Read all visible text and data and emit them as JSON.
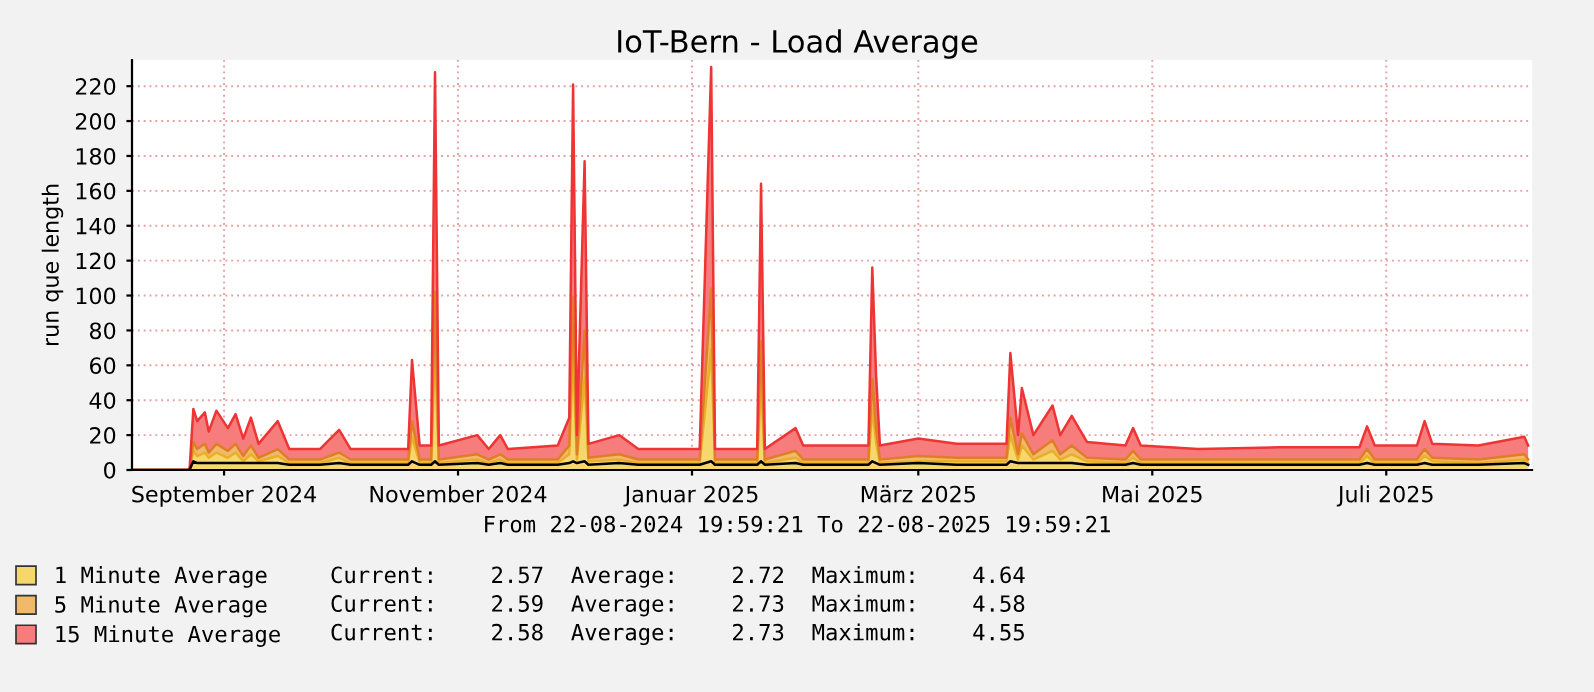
{
  "chart_data": {
    "type": "area",
    "title": "IoT-Bern - Load Average",
    "ylabel": "run que length",
    "stacked": true,
    "x": [
      "2024-08-22",
      "2024-09-06",
      "2024-09-07",
      "2024-09-08",
      "2024-09-10",
      "2024-09-11",
      "2024-09-13",
      "2024-09-16",
      "2024-09-18",
      "2024-09-20",
      "2024-09-22",
      "2024-09-24",
      "2024-09-29",
      "2024-10-02",
      "2024-10-10",
      "2024-10-15",
      "2024-10-18",
      "2024-10-30",
      "2024-11-02",
      "2024-11-03",
      "2024-11-05",
      "2024-11-08",
      "2024-11-09",
      "2024-11-10",
      "2024-11-20",
      "2024-11-23",
      "2024-11-26",
      "2024-11-28",
      "2024-12-11",
      "2024-12-14",
      "2024-12-15",
      "2024-12-16",
      "2024-12-18",
      "2024-12-19",
      "2024-12-27",
      "2025-01-01",
      "2025-01-17",
      "2025-01-20",
      "2025-01-21",
      "2025-02-01",
      "2025-02-02",
      "2025-02-03",
      "2025-02-11",
      "2025-02-13",
      "2025-02-22",
      "2025-03-02",
      "2025-03-03",
      "2025-03-04",
      "2025-03-05",
      "2025-03-15",
      "2025-03-25",
      "2025-04-07",
      "2025-04-08",
      "2025-04-10",
      "2025-04-11",
      "2025-04-14",
      "2025-04-19",
      "2025-04-21",
      "2025-04-24",
      "2025-04-28",
      "2025-05-08",
      "2025-05-10",
      "2025-05-12",
      "2025-05-27",
      "2025-06-17",
      "2025-07-08",
      "2025-07-10",
      "2025-07-12",
      "2025-07-23",
      "2025-07-25",
      "2025-07-27",
      "2025-08-08",
      "2025-08-20",
      "2025-08-21"
    ],
    "series": [
      {
        "name": "1 Minute Average",
        "color": "#f5d76e",
        "values": [
          0,
          0,
          11,
          8,
          10,
          7,
          10,
          7,
          10,
          5,
          9,
          5,
          8,
          4,
          4,
          7,
          4,
          4,
          4,
          19,
          4,
          4,
          68,
          4,
          6,
          4,
          6,
          4,
          4,
          9,
          66,
          6,
          53,
          5,
          6,
          4,
          4,
          69,
          4,
          4,
          49,
          4,
          7,
          4,
          4,
          4,
          35,
          16,
          4,
          5,
          5,
          5,
          20,
          6,
          14,
          6,
          11,
          6,
          9,
          5,
          4,
          7,
          4,
          4,
          4,
          4,
          8,
          4,
          4,
          8,
          5,
          4,
          6,
          4
        ]
      },
      {
        "name": "5 Minute Average",
        "color": "#f0b96b",
        "values": [
          0,
          0,
          5,
          4,
          5,
          3,
          5,
          4,
          5,
          3,
          5,
          2,
          4,
          2,
          2,
          3,
          2,
          2,
          2,
          9,
          2,
          2,
          34,
          2,
          3,
          2,
          3,
          2,
          2,
          5,
          33,
          3,
          27,
          2,
          3,
          2,
          2,
          35,
          2,
          2,
          25,
          2,
          4,
          2,
          2,
          2,
          17,
          8,
          2,
          3,
          2,
          2,
          10,
          3,
          7,
          3,
          6,
          3,
          5,
          2,
          2,
          4,
          2,
          2,
          2,
          2,
          4,
          2,
          2,
          4,
          2,
          2,
          3,
          2
        ]
      },
      {
        "name": "15 Minute Average",
        "color": "#f77c7c",
        "values": [
          0,
          0,
          19,
          16,
          18,
          12,
          19,
          13,
          17,
          10,
          16,
          8,
          16,
          6,
          6,
          13,
          6,
          6,
          6,
          35,
          8,
          8,
          126,
          8,
          11,
          6,
          11,
          6,
          8,
          16,
          122,
          11,
          97,
          8,
          11,
          6,
          6,
          127,
          6,
          6,
          90,
          6,
          13,
          8,
          8,
          8,
          64,
          30,
          8,
          10,
          8,
          8,
          37,
          11,
          26,
          11,
          20,
          11,
          17,
          9,
          8,
          13,
          8,
          6,
          7,
          7,
          13,
          8,
          8,
          16,
          8,
          8,
          10,
          8
        ]
      },
      {
        "type": "line",
        "color": "#000000",
        "values": [
          0,
          0,
          5,
          4,
          4,
          4,
          4,
          4,
          4,
          4,
          4,
          4,
          4,
          3,
          3,
          4,
          3,
          3,
          3,
          5,
          3,
          3,
          5,
          3,
          4,
          3,
          4,
          3,
          3,
          4,
          5,
          4,
          5,
          3,
          4,
          3,
          3,
          5,
          3,
          3,
          5,
          3,
          4,
          3,
          3,
          3,
          5,
          4,
          3,
          4,
          3,
          3,
          5,
          4,
          4,
          4,
          4,
          4,
          4,
          3,
          3,
          4,
          3,
          3,
          3,
          3,
          4,
          3,
          3,
          4,
          3,
          3,
          4,
          3
        ]
      }
    ],
    "xlim": [
      "2024-08-22",
      "2025-08-22"
    ],
    "xticks": [
      {
        "value": "2024-09-15",
        "label": "September 2024"
      },
      {
        "value": "2024-11-15",
        "label": "November 2024"
      },
      {
        "value": "2025-01-15",
        "label": "Januar 2025"
      },
      {
        "value": "2025-03-15",
        "label": "März 2025"
      },
      {
        "value": "2025-05-15",
        "label": "Mai 2025"
      },
      {
        "value": "2025-07-15",
        "label": "Juli 2025"
      }
    ],
    "ylim": [
      0,
      235
    ],
    "yticks": [
      0,
      20,
      40,
      60,
      80,
      100,
      120,
      140,
      160,
      180,
      200,
      220
    ],
    "grid": true,
    "legend": "bottom",
    "annotations": [
      "From 22-08-2024 19:59:21 To 22-08-2025 19:59:21",
      "Current:    2.57  Average:    2.72  Maximum:    4.64",
      "Current:    2.59  Average:    2.73  Maximum:    4.58",
      "Current:    2.58  Average:    2.73  Maximum:    4.55"
    ]
  }
}
